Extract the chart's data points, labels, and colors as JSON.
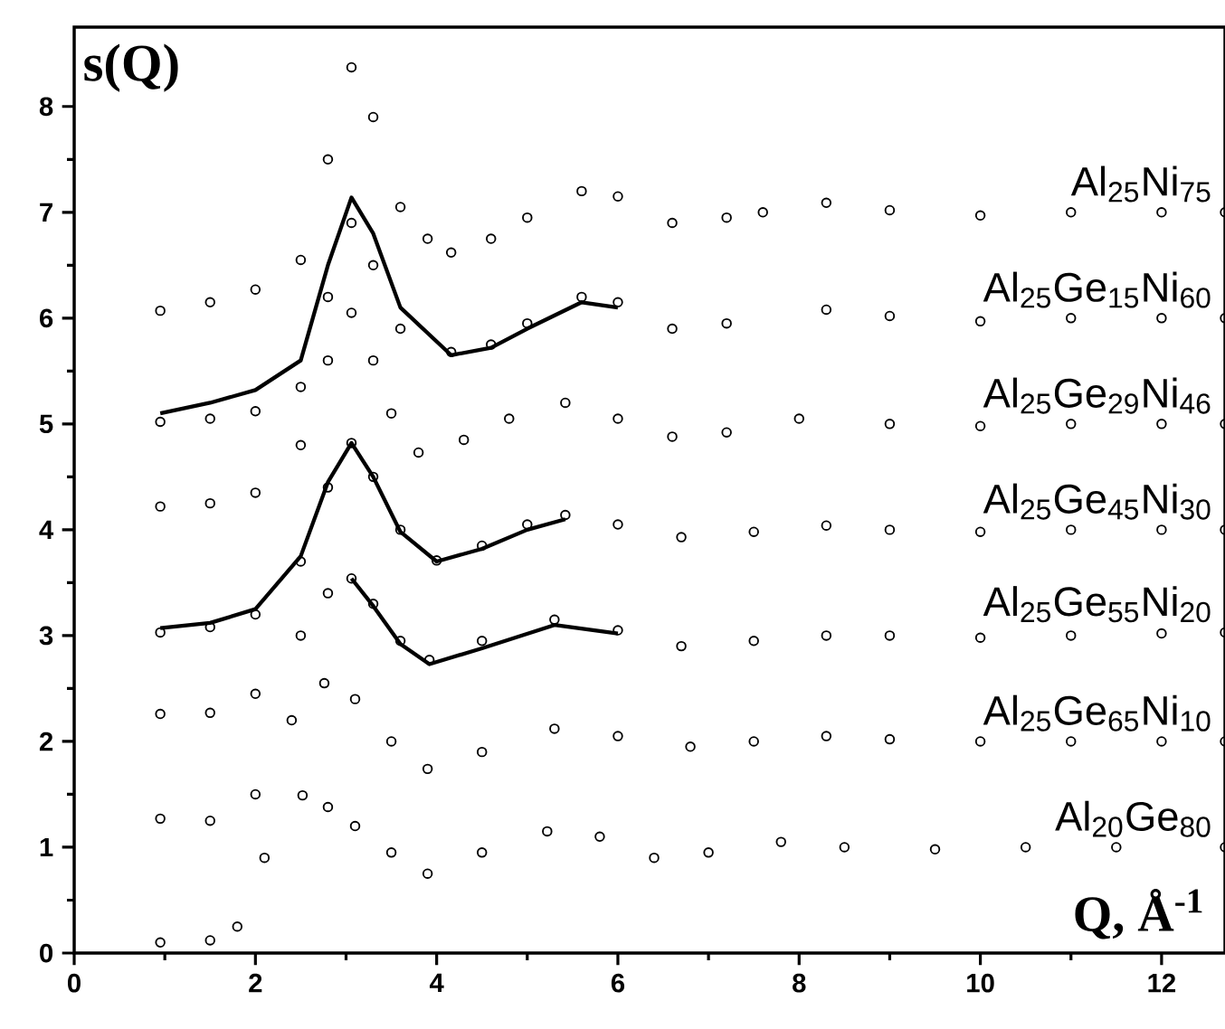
{
  "chart_data": {
    "type": "scatter",
    "xlabel": "Q, Å$^{-1}$",
    "ylabel": "s(Q)",
    "xlim": [
      0,
      12.7
    ],
    "ylim": [
      0,
      8.75
    ],
    "xticks": [
      0,
      2,
      4,
      6,
      8,
      10,
      12
    ],
    "yticks": [
      0,
      1,
      2,
      3,
      4,
      5,
      6,
      7,
      8
    ],
    "marker": "circle",
    "series": [
      {
        "name": "Al$_{25}$Ni$_{75}$",
        "color": "#000000",
        "x": [
          0.95,
          1.5,
          2.0,
          2.5,
          2.8,
          3.06,
          3.3,
          3.6,
          3.9,
          4.16,
          4.6,
          5.0,
          5.6,
          6.0,
          6.6,
          7.2,
          7.6,
          8.3,
          9.0,
          10.0,
          11.0,
          12.0,
          12.7
        ],
        "values": [
          6.07,
          6.15,
          6.27,
          6.55,
          7.5,
          8.37,
          7.9,
          7.05,
          6.75,
          6.62,
          6.75,
          6.95,
          7.2,
          7.15,
          6.9,
          6.95,
          7.0,
          7.09,
          7.02,
          6.97,
          7.0,
          7.0,
          7.0
        ]
      },
      {
        "type": "line",
        "marker": "none",
        "color": "#000000",
        "x": [
          0.95,
          1.5,
          2.0,
          2.5,
          2.8,
          3.06,
          3.3,
          3.6,
          4.16,
          4.6,
          5.0,
          5.6,
          6.0
        ],
        "values": [
          5.1,
          5.2,
          5.32,
          5.6,
          6.5,
          7.14,
          6.8,
          6.1,
          5.65,
          5.72,
          5.9,
          6.15,
          6.1
        ]
      },
      {
        "name": "Al$_{25}$Ge$_{15}$Ni$_{60}$",
        "color": "#000000",
        "x": [
          0.95,
          1.5,
          2.0,
          2.5,
          2.8,
          3.06,
          3.3,
          3.6,
          4.16,
          4.6,
          5.0,
          5.6,
          6.0,
          6.6,
          7.2,
          8.3,
          9.0,
          10.0,
          11.0,
          12.0,
          12.7
        ],
        "values": [
          5.02,
          5.05,
          5.12,
          5.35,
          6.2,
          6.9,
          6.5,
          5.9,
          5.68,
          5.75,
          5.95,
          6.2,
          6.15,
          5.9,
          5.95,
          6.08,
          6.02,
          5.97,
          6.0,
          6.0,
          6.0
        ]
      },
      {
        "name": "Al$_{25}$Ge$_{29}$Ni$_{46}$",
        "color": "#000000",
        "x": [
          0.95,
          1.5,
          2.0,
          2.5,
          2.8,
          3.06,
          3.3,
          3.5,
          3.8,
          4.3,
          4.8,
          5.42,
          6.0,
          6.6,
          7.2,
          8.0,
          9.0,
          10.0,
          11.0,
          12.0,
          12.7
        ],
        "values": [
          4.22,
          4.25,
          4.35,
          4.8,
          5.6,
          6.05,
          5.6,
          5.1,
          4.73,
          4.85,
          5.05,
          5.2,
          5.05,
          4.88,
          4.92,
          5.05,
          5.0,
          4.98,
          5.0,
          5.0,
          5.0
        ]
      },
      {
        "type": "line",
        "marker": "none",
        "color": "#000000",
        "x": [
          0.95,
          1.5,
          2.0,
          2.5,
          2.8,
          3.06,
          3.3,
          3.6,
          4.0,
          4.5,
          5.0,
          5.42
        ],
        "values": [
          3.07,
          3.12,
          3.25,
          3.75,
          4.45,
          4.82,
          4.5,
          3.98,
          3.7,
          3.82,
          4.0,
          4.1
        ]
      },
      {
        "name": "Al$_{25}$Ge$_{45}$Ni$_{30}$",
        "color": "#000000",
        "x": [
          0.95,
          1.5,
          2.0,
          2.5,
          2.8,
          3.06,
          3.3,
          3.6,
          4.0,
          4.5,
          5.0,
          5.42,
          6.0,
          6.7,
          7.5,
          8.3,
          9.0,
          10.0,
          11.0,
          12.0,
          12.7
        ],
        "values": [
          3.03,
          3.08,
          3.2,
          3.7,
          4.4,
          4.82,
          4.5,
          4.0,
          3.71,
          3.85,
          4.05,
          4.14,
          4.05,
          3.93,
          3.98,
          4.04,
          4.0,
          3.98,
          4.0,
          4.0,
          4.0
        ]
      },
      {
        "type": "line",
        "marker": "none",
        "color": "#000000",
        "x": [
          3.06,
          3.3,
          3.6,
          3.92,
          4.5,
          5.3,
          6.0
        ],
        "values": [
          3.54,
          3.28,
          2.92,
          2.73,
          2.88,
          3.1,
          3.02
        ]
      },
      {
        "name": "Al$_{25}$Ge$_{55}$Ni$_{20}$",
        "color": "#000000",
        "x": [
          0.95,
          1.5,
          2.0,
          2.5,
          2.8,
          3.06,
          3.3,
          3.6,
          3.92,
          4.5,
          5.3,
          6.0,
          6.7,
          7.5,
          8.3,
          9.0,
          10.0,
          11.0,
          12.0,
          12.7
        ],
        "values": [
          2.26,
          2.27,
          2.45,
          3.0,
          3.4,
          3.54,
          3.3,
          2.95,
          2.77,
          2.95,
          3.15,
          3.05,
          2.9,
          2.95,
          3.0,
          3.0,
          2.98,
          3.0,
          3.02,
          3.03
        ]
      },
      {
        "name": "Al$_{25}$Ge$_{65}$Ni$_{10}$",
        "color": "#000000",
        "x": [
          0.95,
          1.5,
          2.0,
          2.4,
          2.76,
          3.1,
          3.5,
          3.9,
          4.5,
          5.3,
          6.0,
          6.8,
          7.5,
          8.3,
          9.0,
          10.0,
          11.0,
          12.0,
          12.7
        ],
        "values": [
          1.27,
          1.25,
          1.5,
          2.2,
          2.55,
          2.4,
          2.0,
          1.74,
          1.9,
          2.12,
          2.05,
          1.95,
          2.0,
          2.05,
          2.02,
          2.0,
          2.0,
          2.0,
          2.0
        ]
      },
      {
        "name": "Al$_{20}$Ge$_{80}$",
        "color": "#000000",
        "x": [
          0.95,
          1.5,
          1.8,
          2.1,
          2.52,
          2.8,
          3.1,
          3.5,
          3.9,
          4.5,
          5.22,
          5.8,
          6.4,
          7.0,
          7.8,
          8.5,
          9.5,
          10.5,
          11.5,
          12.7
        ],
        "values": [
          0.1,
          0.12,
          0.25,
          0.9,
          1.49,
          1.38,
          1.2,
          0.95,
          0.75,
          0.95,
          1.15,
          1.1,
          0.9,
          0.95,
          1.05,
          1.0,
          0.98,
          1.0,
          1.0,
          1.0
        ]
      }
    ]
  }
}
